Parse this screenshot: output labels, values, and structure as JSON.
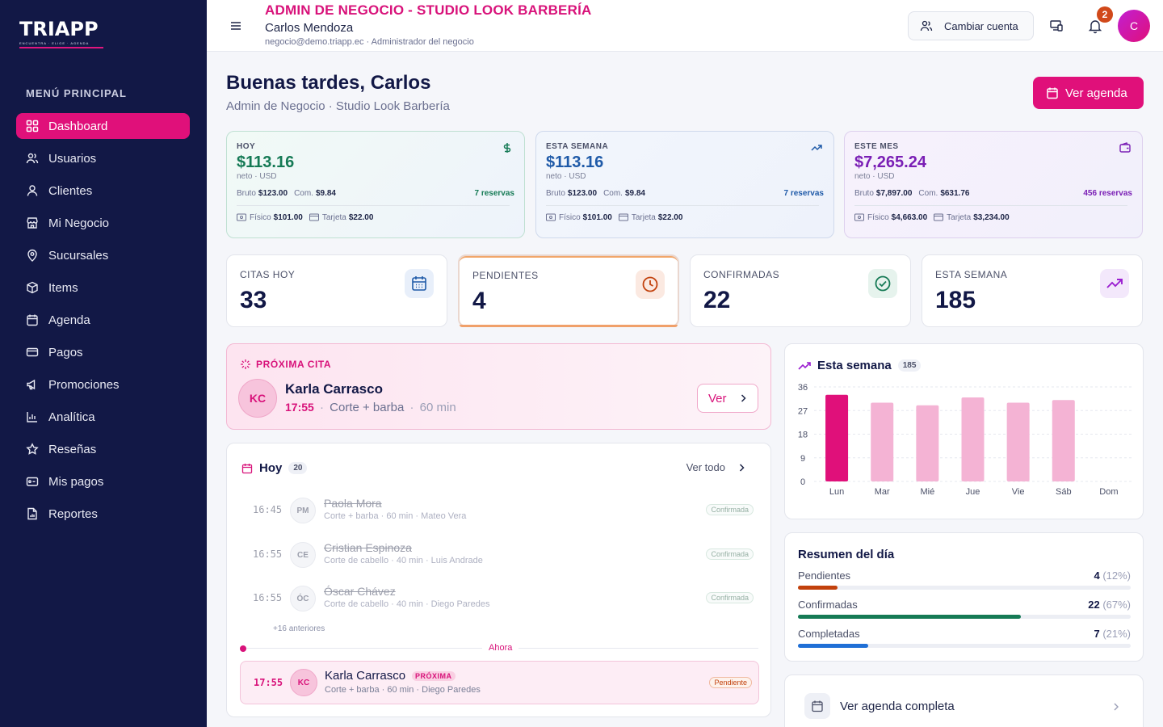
{
  "brand": {
    "logo_text": "TRIAPP",
    "logo_tagline": "ENCUENTRA · ELIGE · AGENDA",
    "accent": "#e0107a",
    "sidebar_bg": "#121846"
  },
  "sidebar": {
    "menu_title": "MENÚ PRINCIPAL",
    "items": [
      {
        "label": "Dashboard",
        "icon": "grid-icon",
        "active": true
      },
      {
        "label": "Usuarios",
        "icon": "users-icon"
      },
      {
        "label": "Clientes",
        "icon": "user-icon"
      },
      {
        "label": "Mi Negocio",
        "icon": "store-icon"
      },
      {
        "label": "Sucursales",
        "icon": "map-pin-icon"
      },
      {
        "label": "Items",
        "icon": "box-icon"
      },
      {
        "label": "Agenda",
        "icon": "calendar-icon"
      },
      {
        "label": "Pagos",
        "icon": "credit-card-icon"
      },
      {
        "label": "Promociones",
        "icon": "megaphone-icon"
      },
      {
        "label": "Analítica",
        "icon": "bar-chart-icon"
      },
      {
        "label": "Reseñas",
        "icon": "star-icon"
      },
      {
        "label": "Mis pagos",
        "icon": "wallet-icon"
      },
      {
        "label": "Reportes",
        "icon": "file-chart-icon"
      }
    ]
  },
  "topbar": {
    "title": "ADMIN DE NEGOCIO - STUDIO LOOK BARBERÍA",
    "user_name": "Carlos Mendoza",
    "user_meta": "negocio@demo.triapp.ec · Administrador del negocio",
    "switch_account": "Cambiar cuenta",
    "notifications_count": "2",
    "avatar_initial": "C"
  },
  "header": {
    "greeting": "Buenas tardes, Carlos",
    "subtitle": "Admin de Negocio · Studio Look Barbería",
    "agenda_button": "Ver agenda"
  },
  "revenue": [
    {
      "label": "HOY",
      "amount": "$113.16",
      "neto": "neto · USD",
      "bruto_label": "Bruto",
      "bruto": "$123.00",
      "com_label": "Com.",
      "com": "$9.84",
      "reservas": "7 reservas",
      "fisico_label": "Físico",
      "fisico": "$101.00",
      "tarjeta_label": "Tarjeta",
      "tarjeta": "$22.00",
      "icon": "dollar-icon"
    },
    {
      "label": "ESTA SEMANA",
      "amount": "$113.16",
      "neto": "neto · USD",
      "bruto_label": "Bruto",
      "bruto": "$123.00",
      "com_label": "Com.",
      "com": "$9.84",
      "reservas": "7 reservas",
      "fisico_label": "Físico",
      "fisico": "$101.00",
      "tarjeta_label": "Tarjeta",
      "tarjeta": "$22.00",
      "icon": "trending-up-icon"
    },
    {
      "label": "ESTE MES",
      "amount": "$7,265.24",
      "neto": "neto · USD",
      "bruto_label": "Bruto",
      "bruto": "$7,897.00",
      "com_label": "Com.",
      "com": "$631.76",
      "reservas": "456 reservas",
      "fisico_label": "Físico",
      "fisico": "$4,663.00",
      "tarjeta_label": "Tarjeta",
      "tarjeta": "$3,234.00",
      "icon": "wallet-icon"
    }
  ],
  "stats": [
    {
      "label": "CITAS HOY",
      "value": "33",
      "icon": "calendar-icon",
      "color": "#1f5aa8"
    },
    {
      "label": "PENDIENTES",
      "value": "4",
      "icon": "clock-icon",
      "color": "#c2410c"
    },
    {
      "label": "CONFIRMADAS",
      "value": "22",
      "icon": "check-circle-icon",
      "color": "#157a55"
    },
    {
      "label": "ESTA SEMANA",
      "value": "185",
      "icon": "trending-up-icon",
      "color": "#9b1fd1"
    }
  ],
  "next_appointment": {
    "tag": "PRÓXIMA CITA",
    "initials": "KC",
    "name": "Karla Carrasco",
    "time": "17:55",
    "service": "Corte + barba",
    "duration": "60 min",
    "button": "Ver"
  },
  "today": {
    "title": "Hoy",
    "count": "20",
    "see_all": "Ver todo",
    "rows": [
      {
        "time": "16:45",
        "initials": "PM",
        "name": "Paola Mora",
        "detail": "Corte + barba · 60 min · Mateo Vera",
        "status": "Confirmada"
      },
      {
        "time": "16:55",
        "initials": "CE",
        "name": "Cristian Espinoza",
        "detail": "Corte de cabello · 40 min · Luis Andrade",
        "status": "Confirmada"
      },
      {
        "time": "16:55",
        "initials": "ÓC",
        "name": "Óscar Chávez",
        "detail": "Corte de cabello · 40 min · Diego Paredes",
        "status": "Confirmada"
      }
    ],
    "earlier": "+16 anteriores",
    "now_label": "Ahora",
    "current": {
      "time": "17:55",
      "initials": "KC",
      "name": "Karla Carrasco",
      "tag": "PRÓXIMA",
      "detail": "Corte + barba · 60 min · Diego Paredes",
      "status": "Pendiente"
    }
  },
  "chart_title": "Esta semana",
  "chart_count": "185",
  "chart_data": {
    "type": "bar",
    "categories": [
      "Lun",
      "Mar",
      "Mié",
      "Jue",
      "Vie",
      "Sáb",
      "Dom"
    ],
    "values": [
      33,
      30,
      29,
      32,
      30,
      31,
      0
    ],
    "ylim": [
      0,
      36
    ],
    "yticks": [
      "36",
      "27",
      "18",
      "9",
      "0"
    ],
    "highlight_index": 0,
    "colors": {
      "highlight": "#e0107a",
      "normal": "#f4b3d4"
    }
  },
  "summary": {
    "title": "Resumen del día",
    "items": [
      {
        "label": "Pendientes",
        "count": "4",
        "pct": "(12%)",
        "fraction": 0.12,
        "color": "#c2410c"
      },
      {
        "label": "Confirmadas",
        "count": "22",
        "pct": "(67%)",
        "fraction": 0.67,
        "color": "#157a55"
      },
      {
        "label": "Completadas",
        "count": "7",
        "pct": "(21%)",
        "fraction": 0.21,
        "color": "#1f6fd6"
      }
    ]
  },
  "full_agenda": {
    "label": "Ver agenda completa"
  }
}
